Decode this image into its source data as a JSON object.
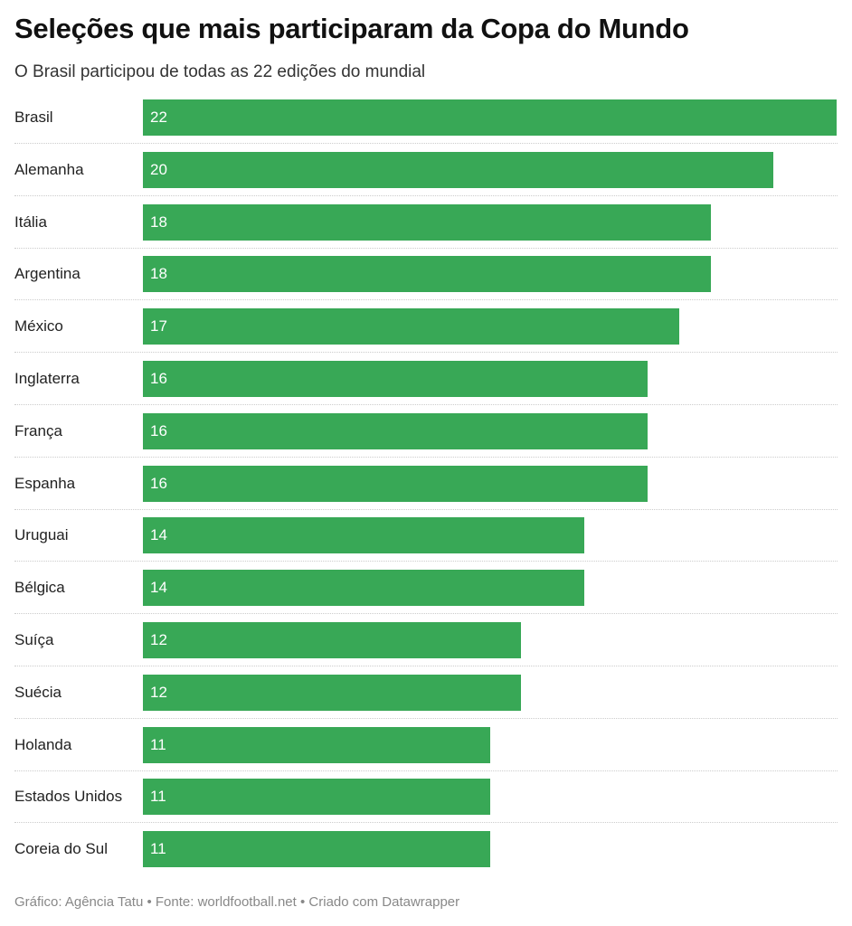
{
  "chart_data": {
    "type": "bar",
    "title": "Seleções que mais participaram da Copa do Mundo",
    "subtitle": "O Brasil participou de todas as 22 edições do mundial",
    "categories": [
      "Brasil",
      "Alemanha",
      "Itália",
      "Argentina",
      "México",
      "Inglaterra",
      "França",
      "Espanha",
      "Uruguai",
      "Bélgica",
      "Suíça",
      "Suécia",
      "Holanda",
      "Estados Unidos",
      "Coreia do Sul"
    ],
    "values": [
      22,
      20,
      18,
      18,
      17,
      16,
      16,
      16,
      14,
      14,
      12,
      12,
      11,
      11,
      11
    ],
    "xlim": [
      0,
      22
    ],
    "bar_color": "#38a856",
    "footer": "Gráfico: Agência Tatu • Fonte: worldfootball.net • Criado com Datawrapper"
  }
}
